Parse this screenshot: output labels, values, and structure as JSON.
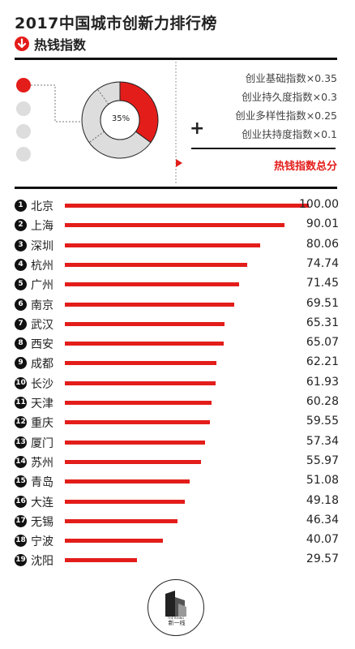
{
  "header": {
    "title": "2017中国城市创新力排行榜",
    "subtitle": "热钱指数"
  },
  "legend": {
    "donut_label": "35%",
    "donut_fraction": 0.35,
    "formula_items": [
      "创业基础指数×0.35",
      "创业持久度指数×0.3",
      "创业多样性指数×0.25",
      "创业扶持度指数×0.1"
    ],
    "plus_sign": "+",
    "total_label": "热钱指数总分"
  },
  "colors": {
    "accent": "#e31d1a",
    "dark": "#111111",
    "gray": "#dddddd"
  },
  "chart_data": {
    "type": "bar",
    "title": "2017中国城市创新力排行榜",
    "subtitle": "热钱指数",
    "ranks": [
      "1",
      "2",
      "3",
      "4",
      "5",
      "6",
      "7",
      "8",
      "9",
      "10",
      "11",
      "12",
      "13",
      "14",
      "15",
      "16",
      "17",
      "18",
      "19"
    ],
    "categories": [
      "北京",
      "上海",
      "深圳",
      "杭州",
      "广州",
      "南京",
      "武汉",
      "西安",
      "成都",
      "长沙",
      "天津",
      "重庆",
      "厦门",
      "苏州",
      "青岛",
      "大连",
      "无锡",
      "宁波",
      "沈阳"
    ],
    "values": [
      100.0,
      90.01,
      80.06,
      74.74,
      71.45,
      69.51,
      65.31,
      65.07,
      62.21,
      61.93,
      60.28,
      59.55,
      57.34,
      55.97,
      51.08,
      49.18,
      46.34,
      40.07,
      29.57
    ],
    "value_labels": [
      "100.00",
      "90.01",
      "80.06",
      "74.74",
      "71.45",
      "69.51",
      "65.31",
      "65.07",
      "62.21",
      "61.93",
      "60.28",
      "59.55",
      "57.34",
      "55.97",
      "51.08",
      "49.18",
      "46.34",
      "40.07",
      "29.57"
    ],
    "xlim": [
      0,
      100
    ],
    "orientation": "horizontal",
    "grid": false,
    "legend": "none"
  },
  "footer": {
    "logo_icon": "the-rising-lab-logo",
    "logo_text": "新一线"
  }
}
